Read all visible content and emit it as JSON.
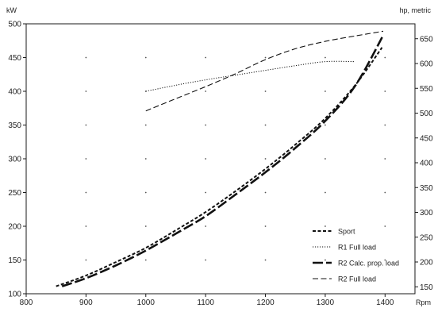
{
  "chart_data": {
    "type": "line",
    "y_unit_label": "kW",
    "y2_unit_label": "hp, metric",
    "x_unit_label": "Rpm",
    "xlim": [
      800,
      1450
    ],
    "ylim": [
      100,
      500
    ],
    "y2lim": [
      136,
      680
    ],
    "x_ticks": [
      800,
      900,
      1000,
      1100,
      1200,
      1300,
      1400
    ],
    "y_ticks": [
      100,
      150,
      200,
      250,
      300,
      350,
      400,
      450,
      500
    ],
    "y2_ticks": [
      150,
      200,
      250,
      300,
      350,
      400,
      450,
      500,
      550,
      600,
      650
    ],
    "grid": "dotted",
    "legend_position": "bottom-right",
    "series": [
      {
        "name": "Sport",
        "dash": "short-dash",
        "x": [
          850,
          900,
          950,
          1000,
          1050,
          1100,
          1150,
          1200,
          1250,
          1300,
          1350,
          1395
        ],
        "y": [
          111,
          127,
          147,
          168,
          194,
          221,
          252,
          285,
          321,
          360,
          409,
          465
        ]
      },
      {
        "name": "R1 Full load",
        "dash": "dotted",
        "x": [
          1000,
          1050,
          1100,
          1150,
          1200,
          1250,
          1300,
          1350
        ],
        "y": [
          400,
          409,
          417,
          424,
          431,
          438,
          444,
          444
        ]
      },
      {
        "name": "R2 Calc. prop. load",
        "dash": "long-dash",
        "x": [
          860,
          900,
          950,
          1000,
          1050,
          1100,
          1150,
          1200,
          1250,
          1300,
          1350,
          1397
        ],
        "y": [
          111,
          123,
          142,
          164,
          189,
          215,
          247,
          280,
          316,
          356,
          408,
          483
        ]
      },
      {
        "name": "R2 Full load",
        "dash": "medium-dash",
        "x": [
          1000,
          1050,
          1100,
          1150,
          1200,
          1250,
          1300,
          1350,
          1397
        ],
        "y": [
          371,
          389,
          407,
          426,
          447,
          463,
          474,
          482,
          489
        ]
      }
    ]
  }
}
